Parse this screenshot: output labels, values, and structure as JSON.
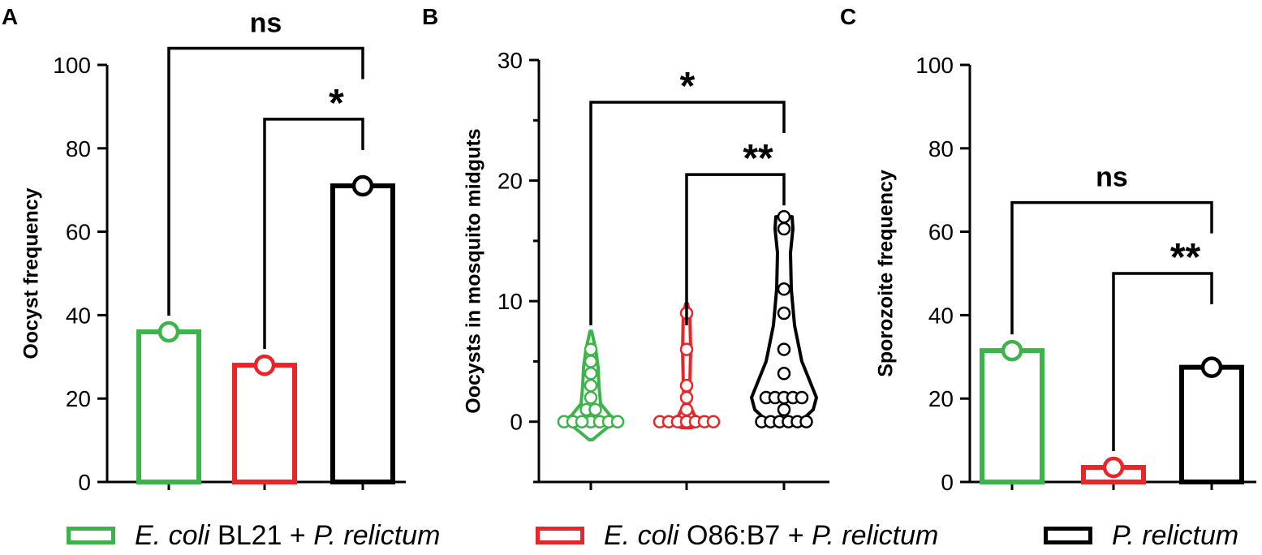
{
  "colors": {
    "green": "#3cb44b",
    "red": "#e8262a",
    "black": "#000000"
  },
  "legend": [
    {
      "color": "#3cb44b",
      "parts": [
        {
          "t": "E. coli",
          "i": true
        },
        {
          "t": " BL21 + ",
          "i": false
        },
        {
          "t": "P. relictum",
          "i": true
        }
      ]
    },
    {
      "color": "#e8262a",
      "parts": [
        {
          "t": "E. coli",
          "i": true
        },
        {
          "t": " O86:B7 + ",
          "i": false
        },
        {
          "t": "P. relictum",
          "i": true
        }
      ]
    },
    {
      "color": "#000000",
      "parts": [
        {
          "t": "P. relictum",
          "i": true
        }
      ]
    }
  ],
  "chart_data": [
    {
      "panel": "A",
      "type": "bar",
      "ylabel": "Oocyst frequency",
      "ylim": [
        0,
        100
      ],
      "yticks": [
        "0",
        "20",
        "40",
        "60",
        "80",
        "100"
      ],
      "categories": [
        "E. coli BL21 + P. relictum",
        "E. coli O86:B7 + P. relictum",
        "P. relictum"
      ],
      "values": [
        36,
        28,
        71
      ],
      "colors": [
        "#3cb44b",
        "#e8262a",
        "#000000"
      ],
      "significance": [
        {
          "from": 0,
          "to": 2,
          "label": "ns",
          "level": 104
        },
        {
          "from": 1,
          "to": 2,
          "label": "*",
          "level": 87
        }
      ]
    },
    {
      "panel": "B",
      "type": "violin",
      "ylabel": "Oocysts in mosquito midguts",
      "ylim": [
        -5,
        30
      ],
      "yticks": [
        "0",
        "10",
        "20",
        "30"
      ],
      "categories": [
        "E. coli BL21 + P. relictum",
        "E. coli O86:B7 + P. relictum",
        "P. relictum"
      ],
      "colors": [
        "#3cb44b",
        "#e8262a",
        "#000000"
      ],
      "series": [
        {
          "points": [
            0,
            0,
            0,
            0,
            0,
            0,
            0,
            0,
            0,
            0,
            0,
            0,
            0,
            0,
            0,
            0,
            0,
            1,
            1,
            2,
            3,
            4,
            5,
            6
          ]
        },
        {
          "points": [
            0,
            0,
            0,
            0,
            0,
            0,
            0,
            1,
            2,
            3,
            6,
            9
          ]
        },
        {
          "points": [
            0,
            0,
            0,
            0,
            0,
            0,
            1,
            2,
            2,
            2,
            2,
            2,
            4,
            6,
            9,
            11,
            16,
            17
          ]
        }
      ],
      "significance": [
        {
          "from": 0,
          "to": 2,
          "label": "*",
          "level": 26.5
        },
        {
          "from": 1,
          "to": 2,
          "label": "**",
          "level": 20.5
        }
      ]
    },
    {
      "panel": "C",
      "type": "bar",
      "ylabel": "Sporozoite frequency",
      "ylim": [
        0,
        100
      ],
      "yticks": [
        "0",
        "20",
        "40",
        "60",
        "80",
        "100"
      ],
      "categories": [
        "E. coli BL21 + P. relictum",
        "E. coli O86:B7 + P. relictum",
        "P. relictum"
      ],
      "values": [
        31.5,
        3.5,
        27.5
      ],
      "colors": [
        "#3cb44b",
        "#e8262a",
        "#000000"
      ],
      "significance": [
        {
          "from": 0,
          "to": 2,
          "label": "ns",
          "level": 67
        },
        {
          "from": 1,
          "to": 2,
          "label": "**",
          "level": 50
        }
      ]
    }
  ]
}
